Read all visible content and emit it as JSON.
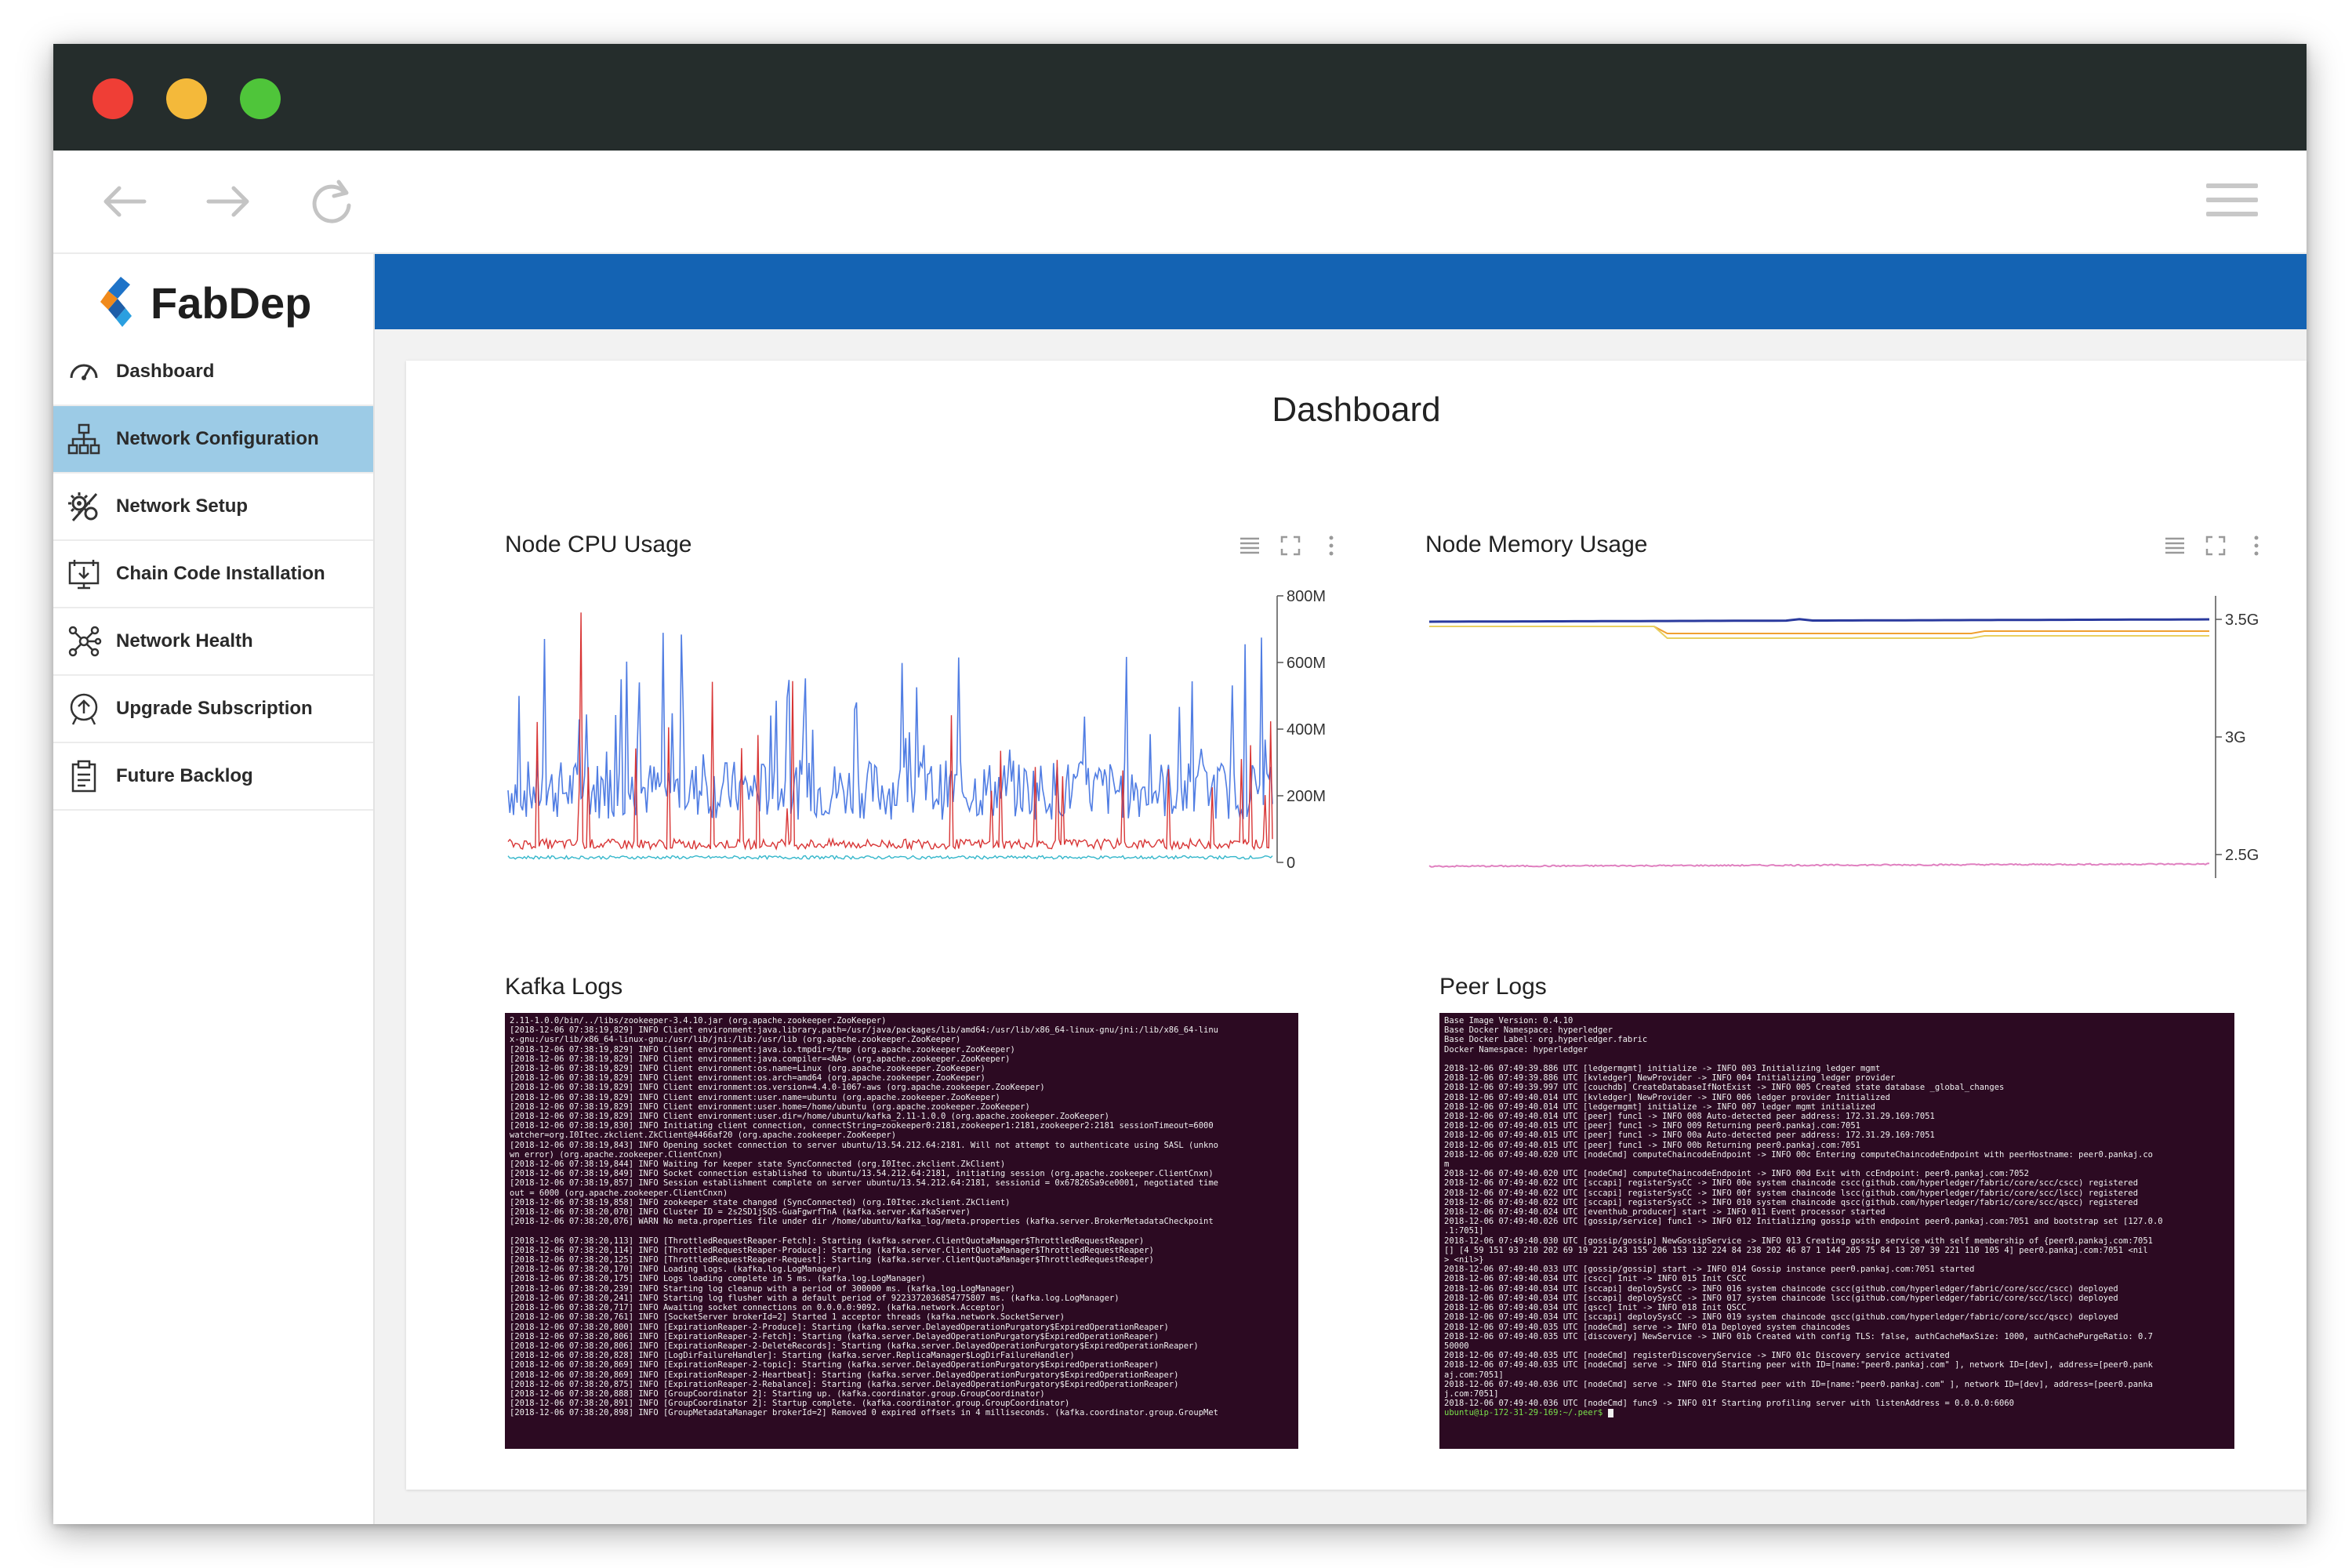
{
  "brand": {
    "name": "FabDep"
  },
  "toolbar": {
    "back_icon": "arrow-left-icon",
    "forward_icon": "arrow-right-icon",
    "reload_icon": "reload-icon",
    "menu_icon": "hamburger-menu-icon"
  },
  "sidebar": {
    "items": [
      {
        "label": "Dashboard",
        "icon": "gauge-icon",
        "active": false
      },
      {
        "label": "Network Configuration",
        "icon": "network-tree-icon",
        "active": true
      },
      {
        "label": "Network Setup",
        "icon": "gears-icon",
        "active": false
      },
      {
        "label": "Chain Code Installation",
        "icon": "monitor-install-icon",
        "active": false
      },
      {
        "label": "Network Health",
        "icon": "network-nodes-icon",
        "active": false
      },
      {
        "label": "Upgrade Subscription",
        "icon": "upgrade-badge-icon",
        "active": false
      },
      {
        "label": "Future Backlog",
        "icon": "clipboard-icon",
        "active": false
      }
    ]
  },
  "colors": {
    "accent_bar": "#1463b3",
    "sidebar_active": "#9ccbe6",
    "terminal_bg": "#2c0a22",
    "cpu_series_blue": "#3d6fe0",
    "cpu_series_red": "#d62a2a"
  },
  "main": {
    "title": "Dashboard",
    "cpu_panel": {
      "title": "Node CPU Usage"
    },
    "mem_panel": {
      "title": "Node Memory Usage"
    },
    "kafka_panel": {
      "title": "Kafka Logs"
    },
    "peer_panel": {
      "title": "Peer Logs"
    }
  },
  "chart_data": [
    {
      "type": "line",
      "title": "Node CPU Usage",
      "y_axis_side": "right",
      "yticks": [
        "800M",
        "600M",
        "400M",
        "200M",
        "0"
      ],
      "ylim": [
        0,
        800
      ],
      "series": [
        {
          "color": "#3d6fe0",
          "typical_value": 200,
          "range": [
            80,
            700
          ]
        },
        {
          "color": "#d62a2a",
          "typical_value": 40,
          "range": [
            0,
            750
          ]
        },
        {
          "color": "#2ab3c8",
          "typical_value": 10,
          "range": [
            0,
            30
          ]
        }
      ]
    },
    {
      "type": "line",
      "title": "Node Memory Usage",
      "y_axis_side": "right",
      "yticks": [
        "3.5G",
        "3G",
        "2.5G"
      ],
      "ylim": [
        2.4,
        3.6
      ],
      "series": [
        {
          "color": "#2a3a9e",
          "values_approx": [
            3.49,
            3.5
          ]
        },
        {
          "color": "#f0a030",
          "values_approx": [
            3.47,
            3.44
          ]
        },
        {
          "color": "#e8d060",
          "values_approx": [
            3.47,
            3.42
          ]
        },
        {
          "color": "#e080c0",
          "values_approx": [
            2.45,
            2.46
          ]
        }
      ]
    }
  ],
  "logs": {
    "kafka": [
      "2.11-1.0.0/bin/../libs/zookeeper-3.4.10.jar (org.apache.zookeeper.ZooKeeper)",
      "[2018-12-06 07:38:19,829] INFO Client environment:java.library.path=/usr/java/packages/lib/amd64:/usr/lib/x86_64-linux-gnu/jni:/lib/x86_64-linu",
      "x-gnu:/usr/lib/x86_64-linux-gnu:/usr/lib/jni:/lib:/usr/lib (org.apache.zookeeper.ZooKeeper)",
      "[2018-12-06 07:38:19,829] INFO Client environment:java.io.tmpdir=/tmp (org.apache.zookeeper.ZooKeeper)",
      "[2018-12-06 07:38:19,829] INFO Client environment:java.compiler=<NA> (org.apache.zookeeper.ZooKeeper)",
      "[2018-12-06 07:38:19,829] INFO Client environment:os.name=Linux (org.apache.zookeeper.ZooKeeper)",
      "[2018-12-06 07:38:19,829] INFO Client environment:os.arch=amd64 (org.apache.zookeeper.ZooKeeper)",
      "[2018-12-06 07:38:19,829] INFO Client environment:os.version=4.4.0-1067-aws (org.apache.zookeeper.ZooKeeper)",
      "[2018-12-06 07:38:19,829] INFO Client environment:user.name=ubuntu (org.apache.zookeeper.ZooKeeper)",
      "[2018-12-06 07:38:19,829] INFO Client environment:user.home=/home/ubuntu (org.apache.zookeeper.ZooKeeper)",
      "[2018-12-06 07:38:19,829] INFO Client environment:user.dir=/home/ubuntu/kafka_2.11-1.0.0 (org.apache.zookeeper.ZooKeeper)",
      "[2018-12-06 07:38:19,830] INFO Initiating client connection, connectString=zookeeper0:2181,zookeeper1:2181,zookeeper2:2181 sessionTimeout=6000",
      "watcher=org.I0Itec.zkclient.ZkClient@4466af20 (org.apache.zookeeper.ZooKeeper)",
      "[2018-12-06 07:38:19,843] INFO Opening socket connection to server ubuntu/13.54.212.64:2181. Will not attempt to authenticate using SASL (unkno",
      "wn error) (org.apache.zookeeper.ClientCnxn)",
      "[2018-12-06 07:38:19,844] INFO Waiting for keeper state SyncConnected (org.I0Itec.zkclient.ZkClient)",
      "[2018-12-06 07:38:19,849] INFO Socket connection established to ubuntu/13.54.212.64:2181, initiating session (org.apache.zookeeper.ClientCnxn)",
      "[2018-12-06 07:38:19,857] INFO Session establishment complete on server ubuntu/13.54.212.64:2181, sessionid = 0x67826Sa9ce0001, negotiated time",
      "out = 6000 (org.apache.zookeeper.ClientCnxn)",
      "[2018-12-06 07:38:19,858] INFO zookeeper state changed (SyncConnected) (org.I0Itec.zkclient.ZkClient)",
      "[2018-12-06 07:38:20,070] INFO Cluster ID = 2s2SD1jSQS-GuaFgwrfTnA (kafka.server.KafkaServer)",
      "[2018-12-06 07:38:20,076] WARN No meta.properties file under dir /home/ubuntu/kafka_log/meta.properties (kafka.server.BrokerMetadataCheckpoint",
      "",
      "[2018-12-06 07:38:20,113] INFO [ThrottledRequestReaper-Fetch]: Starting (kafka.server.ClientQuotaManager$ThrottledRequestReaper)",
      "[2018-12-06 07:38:20,114] INFO [ThrottledRequestReaper-Produce]: Starting (kafka.server.ClientQuotaManager$ThrottledRequestReaper)",
      "[2018-12-06 07:38:20,125] INFO [ThrottledRequestReaper-Request]: Starting (kafka.server.ClientQuotaManager$ThrottledRequestReaper)",
      "[2018-12-06 07:38:20,170] INFO Loading logs. (kafka.log.LogManager)",
      "[2018-12-06 07:38:20,175] INFO Logs loading complete in 5 ms. (kafka.log.LogManager)",
      "[2018-12-06 07:38:20,239] INFO Starting log cleanup with a period of 300000 ms. (kafka.log.LogManager)",
      "[2018-12-06 07:38:20,241] INFO Starting log flusher with a default period of 9223372036854775807 ms. (kafka.log.LogManager)",
      "[2018-12-06 07:38:20,717] INFO Awaiting socket connections on 0.0.0.0:9092. (kafka.network.Acceptor)",
      "[2018-12-06 07:38:20,761] INFO [SocketServer brokerId=2] Started 1 acceptor threads (kafka.network.SocketServer)",
      "[2018-12-06 07:38:20,800] INFO [ExpirationReaper-2-Produce]: Starting (kafka.server.DelayedOperationPurgatory$ExpiredOperationReaper)",
      "[2018-12-06 07:38:20,806] INFO [ExpirationReaper-2-Fetch]: Starting (kafka.server.DelayedOperationPurgatory$ExpiredOperationReaper)",
      "[2018-12-06 07:38:20,806] INFO [ExpirationReaper-2-DeleteRecords]: Starting (kafka.server.DelayedOperationPurgatory$ExpiredOperationReaper)",
      "[2018-12-06 07:38:20,828] INFO [LogDirFailureHandler]: Starting (kafka.server.ReplicaManager$LogDirFailureHandler)",
      "[2018-12-06 07:38:20,869] INFO [ExpirationReaper-2-topic]: Starting (kafka.server.DelayedOperationPurgatory$ExpiredOperationReaper)",
      "[2018-12-06 07:38:20,869] INFO [ExpirationReaper-2-Heartbeat]: Starting (kafka.server.DelayedOperationPurgatory$ExpiredOperationReaper)",
      "[2018-12-06 07:38:20,875] INFO [ExpirationReaper-2-Rebalance]: Starting (kafka.server.DelayedOperationPurgatory$ExpiredOperationReaper)",
      "[2018-12-06 07:38:20,888] INFO [GroupCoordinator 2]: Starting up. (kafka.coordinator.group.GroupCoordinator)",
      "[2018-12-06 07:38:20,891] INFO [GroupCoordinator 2]: Startup complete. (kafka.coordinator.group.GroupCoordinator)",
      "[2018-12-06 07:38:20,898] INFO [GroupMetadataManager brokerId=2] Removed 0 expired offsets in 4 milliseconds. (kafka.coordinator.group.GroupMet"
    ],
    "peer": [
      "  Base Image Version: 0.4.10",
      "  Base Docker Namespace: hyperledger",
      "  Base Docker Label: org.hyperledger.fabric",
      "  Docker Namespace: hyperledger",
      "",
      "2018-12-06 07:49:39.886 UTC [ledgermgmt] initialize -> INFO 003 Initializing ledger mgmt",
      "2018-12-06 07:49:39.886 UTC [kvledger] NewProvider -> INFO 004 Initializing ledger provider",
      "2018-12-06 07:49:39.997 UTC [couchdb] CreateDatabaseIfNotExist -> INFO 005 Created state database _global_changes",
      "2018-12-06 07:49:40.014 UTC [kvledger] NewProvider -> INFO 006 ledger provider Initialized",
      "2018-12-06 07:49:40.014 UTC [ledgermgmt] initialize -> INFO 007 ledger mgmt initialized",
      "2018-12-06 07:49:40.014 UTC [peer] func1 -> INFO 008 Auto-detected peer address: 172.31.29.169:7051",
      "2018-12-06 07:49:40.015 UTC [peer] func1 -> INFO 009 Returning peer0.pankaj.com:7051",
      "2018-12-06 07:49:40.015 UTC [peer] func1 -> INFO 00a Auto-detected peer address: 172.31.29.169:7051",
      "2018-12-06 07:49:40.015 UTC [peer] func1 -> INFO 00b Returning peer0.pankaj.com:7051",
      "2018-12-06 07:49:40.020 UTC [nodeCmd] computeChaincodeEndpoint -> INFO 00c Entering computeChaincodeEndpoint with peerHostname: peer0.pankaj.co",
      "m",
      "2018-12-06 07:49:40.020 UTC [nodeCmd] computeChaincodeEndpoint -> INFO 00d Exit with ccEndpoint: peer0.pankaj.com:7052",
      "2018-12-06 07:49:40.022 UTC [sccapi] registerSysCC -> INFO 00e system chaincode cscc(github.com/hyperledger/fabric/core/scc/cscc) registered",
      "2018-12-06 07:49:40.022 UTC [sccapi] registerSysCC -> INFO 00f system chaincode lscc(github.com/hyperledger/fabric/core/scc/lscc) registered",
      "2018-12-06 07:49:40.022 UTC [sccapi] registerSysCC -> INFO 010 system chaincode qscc(github.com/hyperledger/fabric/core/scc/qscc) registered",
      "2018-12-06 07:49:40.024 UTC [eventhub_producer] start -> INFO 011 Event processor started",
      "2018-12-06 07:49:40.026 UTC [gossip/service] func1 -> INFO 012 Initializing gossip with endpoint peer0.pankaj.com:7051 and bootstrap set [127.0.0",
      ".1:7051]",
      "2018-12-06 07:49:40.030 UTC [gossip/gossip] NewGossipService -> INFO 013 Creating gossip service with self membership of {peer0.pankaj.com:7051",
      " [] [4 59 151 93 210 202 69 19 221 243 155 206 153 132 224 84 238 202 46 87 1 144 205 75 84 13 207 39 221 110 105 4] peer0.pankaj.com:7051 <nil",
      "> <nil>}",
      "2018-12-06 07:49:40.033 UTC [gossip/gossip] start -> INFO 014 Gossip instance peer0.pankaj.com:7051 started",
      "2018-12-06 07:49:40.034 UTC [cscc] Init -> INFO 015 Init CSCC",
      "2018-12-06 07:49:40.034 UTC [sccapi] deploySysCC -> INFO 016 system chaincode cscc(github.com/hyperledger/fabric/core/scc/cscc) deployed",
      "2018-12-06 07:49:40.034 UTC [sccapi] deploySysCC -> INFO 017 system chaincode lscc(github.com/hyperledger/fabric/core/scc/lscc) deployed",
      "2018-12-06 07:49:40.034 UTC [qscc] Init -> INFO 018 Init QSCC",
      "2018-12-06 07:49:40.034 UTC [sccapi] deploySysCC -> INFO 019 system chaincode qscc(github.com/hyperledger/fabric/core/scc/qscc) deployed",
      "2018-12-06 07:49:40.035 UTC [nodeCmd] serve -> INFO 01a Deployed system chaincodes",
      "2018-12-06 07:49:40.035 UTC [discovery] NewService -> INFO 01b Created with config TLS: false, authCacheMaxSize: 1000, authCachePurgeRatio: 0.7",
      "50000",
      "2018-12-06 07:49:40.035 UTC [nodeCmd] registerDiscoveryService -> INFO 01c Discovery service activated",
      "2018-12-06 07:49:40.035 UTC [nodeCmd] serve -> INFO 01d Starting peer with ID=[name:\"peer0.pankaj.com\" ], network ID=[dev], address=[peer0.pank",
      "aj.com:7051]",
      "2018-12-06 07:49:40.036 UTC [nodeCmd] serve -> INFO 01e Started peer with ID=[name:\"peer0.pankaj.com\" ], network ID=[dev], address=[peer0.panka",
      "j.com:7051]",
      "2018-12-06 07:49:40.036 UTC [nodeCmd] func9 -> INFO 01f Starting profiling server with listenAddress = 0.0.0.0:6060"
    ],
    "peer_prompt": "ubuntu@ip-172-31-29-169:~/.peer$"
  }
}
